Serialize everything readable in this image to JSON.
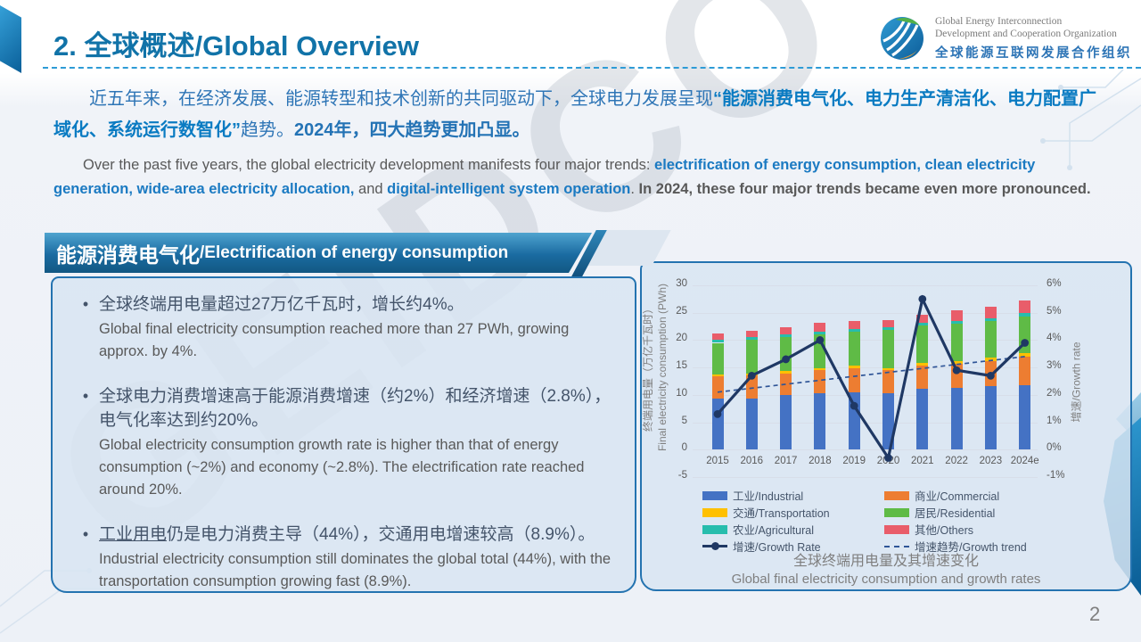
{
  "page": {
    "number": "2"
  },
  "header": {
    "title": "2. 全球概述/Global Overview",
    "logo": {
      "line1": "Global Energy Interconnection",
      "line2": "Development and Cooperation Organization",
      "line3": "全球能源互联网发展合作组织"
    }
  },
  "intro_zh": {
    "segments": [
      {
        "t": "近五年来，在经济发展、能源转型和技术创新的共同驱动下，全球电力发展呈现",
        "cls": ""
      },
      {
        "t": "“能源消费电气化、电力生产清洁化、电力配置广域化、系统运行数智化”",
        "cls": "s-bold"
      },
      {
        "t": "趋势。",
        "cls": ""
      },
      {
        "t": "2024年，四大趋势更加凸显。",
        "cls": "s-end"
      }
    ]
  },
  "intro_en": {
    "segments": [
      {
        "t": "Over the past five years, the global electricity development manifests four major trends: ",
        "cls": ""
      },
      {
        "t": "electrification of energy consumption, clean electricity generation, wide-area electricity allocation,",
        "cls": "e-blue"
      },
      {
        "t": " and ",
        "cls": ""
      },
      {
        "t": "digital-intelligent system operation",
        "cls": "e-blue"
      },
      {
        "t": ". ",
        "cls": ""
      },
      {
        "t": "In 2024, these four major trends became even more pronounced.",
        "cls": "e-bold"
      }
    ]
  },
  "banner": {
    "zh": "能源消费电气化",
    "en": "/Electrification of energy consumption"
  },
  "bullets": [
    {
      "zh_parts": [
        {
          "t": "全球终端用电量超过27万亿千瓦时，增长约4%。"
        }
      ],
      "en": "Global final electricity consumption reached more than 27 PWh, growing approx. by 4%."
    },
    {
      "zh_parts": [
        {
          "t": "全球电力消费增速高于能源消费增速（约2%）和经济增速（2.8%），电气化率达到约20%。"
        }
      ],
      "en": "Global electricity consumption growth rate is higher than that of energy consumption (~2%) and economy (~2.8%). The electrification rate reached around 20%."
    },
    {
      "zh_parts": [
        {
          "t": "工业用电",
          "u": true
        },
        {
          "t": "仍是电力消费主导（44%），交通用电增速较高（8.9%）。"
        }
      ],
      "en": "Industrial electricity consumption still dominates the global total (44%), with the transportation consumption growing fast (8.9%)."
    }
  ],
  "chart_data": {
    "type": "bar+line",
    "title_zh": "全球终端用电量及其增速变化",
    "title_en": "Global final electricity consumption and growth rates",
    "categories": [
      "2015",
      "2016",
      "2017",
      "2018",
      "2019",
      "2020",
      "2021",
      "2022",
      "2023",
      "2024e"
    ],
    "series": [
      {
        "name": "工业/Industrial",
        "color": "#4472C4",
        "values": [
          9.3,
          9.4,
          9.9,
          10.3,
          10.4,
          10.3,
          11.1,
          11.3,
          11.6,
          11.8
        ]
      },
      {
        "name": "商业/Commercial",
        "color": "#ED7D31",
        "values": [
          4.1,
          4.1,
          4.0,
          4.3,
          4.5,
          4.3,
          4.3,
          4.3,
          4.5,
          5.2
        ]
      },
      {
        "name": "交通/Transportation",
        "color": "#FFC000",
        "values": [
          0.4,
          0.4,
          0.5,
          0.3,
          0.4,
          0.3,
          0.5,
          0.6,
          0.7,
          0.7
        ]
      },
      {
        "name": "居民/Residential",
        "color": "#5FBB46",
        "values": [
          5.7,
          6.1,
          6.2,
          6.2,
          6.2,
          7.0,
          6.8,
          6.8,
          6.7,
          6.6
        ]
      },
      {
        "name": "农业/Agricultural",
        "color": "#27BDAD",
        "values": [
          0.5,
          0.5,
          0.5,
          0.4,
          0.5,
          0.5,
          0.5,
          0.5,
          0.5,
          0.6
        ]
      },
      {
        "name": "其他/Others",
        "color": "#E95D6A",
        "values": [
          1.2,
          1.2,
          1.3,
          1.7,
          1.5,
          1.2,
          1.5,
          1.9,
          2.1,
          2.4
        ]
      }
    ],
    "growth_line": {
      "name": "增速/Growth Rate",
      "color": "#1F3864",
      "values_pct": [
        1.3,
        2.7,
        3.3,
        4.0,
        1.6,
        -0.3,
        5.5,
        2.9,
        2.7,
        3.9
      ]
    },
    "growth_trend": {
      "name": "增速趋势/Growth trend",
      "color": "#2F5597",
      "start_pct": 2.1,
      "end_pct": 3.4
    },
    "left_axis": {
      "label_zh": "终端用电量（万亿千瓦时）",
      "label_en": "Final electricity consumption (PWh)",
      "min": -5,
      "max": 30,
      "ticks": [
        30,
        25,
        20,
        15,
        10,
        5,
        0,
        -5
      ]
    },
    "right_axis": {
      "label": "增速/Growth rate",
      "min": -1,
      "max": 6,
      "ticks": [
        "6%",
        "5%",
        "4%",
        "3%",
        "2%",
        "1%",
        "0%",
        "-1%"
      ],
      "tick_values": [
        6,
        5,
        4,
        3,
        2,
        1,
        0,
        -1
      ]
    },
    "legend": {
      "col1": [
        {
          "type": "box",
          "color": "#4472C4",
          "label": "工业/Industrial"
        },
        {
          "type": "box",
          "color": "#FFC000",
          "label": "交通/Transportation"
        },
        {
          "type": "box",
          "color": "#27BDAD",
          "label": "农业/Agricultural"
        },
        {
          "type": "line",
          "color": "#1F3864",
          "label": "增速/Growth Rate"
        }
      ],
      "col2": [
        {
          "type": "box",
          "color": "#ED7D31",
          "label": "商业/Commercial"
        },
        {
          "type": "box",
          "color": "#5FBB46",
          "label": "居民/Residential"
        },
        {
          "type": "box",
          "color": "#E95D6A",
          "label": "其他/Others"
        },
        {
          "type": "dash",
          "color": "#2F5597",
          "label": "增速趋势/Growth trend"
        }
      ]
    }
  }
}
